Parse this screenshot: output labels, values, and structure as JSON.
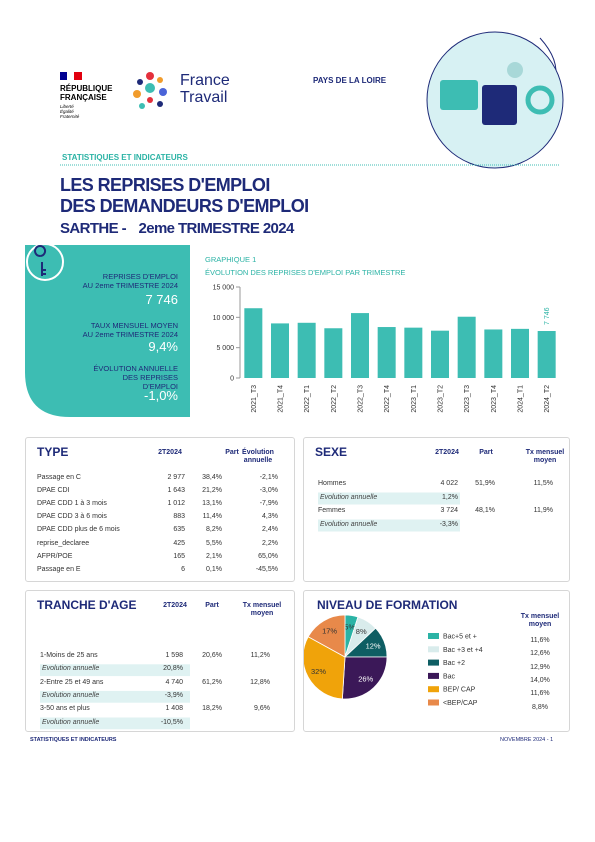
{
  "header": {
    "republique": [
      "RÉPUBLIQUE",
      "FRANÇAISE"
    ],
    "devise": [
      "Liberté",
      "Égalité",
      "Fraternité"
    ],
    "brand": [
      "France",
      "Travail"
    ],
    "region": "PAYS DE LA LOIRE",
    "section": "STATISTIQUES ET INDICATEURS"
  },
  "title": {
    "lines": [
      "LES REPRISES D'EMPLOI",
      "DES DEMANDEURS D'EMPLOI"
    ],
    "place": "SARTHE -",
    "period": "2eme TRIMESTRE 2024"
  },
  "kpi": [
    {
      "label": [
        "REPRISES D'EMPLOI",
        "AU 2eme TRIMESTRE 2024"
      ],
      "value": "7 746"
    },
    {
      "label": [
        "TAUX MENSUEL MOYEN",
        "AU 2eme TRIMESTRE 2024"
      ],
      "value": "9,4%"
    },
    {
      "label": [
        "ÉVOLUTION ANNUELLE",
        "DES REPRISES",
        "D'EMPLOI"
      ],
      "value": "-1,0%"
    }
  ],
  "chart_data": [
    {
      "type": "bar",
      "label": "GRAPHIQUE 1",
      "title": "ÉVOLUTION DES REPRISES D'EMPLOI PAR TRIMESTRE",
      "categories": [
        "2021_T3",
        "2021_T4",
        "2022_T1",
        "2022_T2",
        "2022_T3",
        "2022_T4",
        "2023_T1",
        "2023_T2",
        "2023_T3",
        "2023_T4",
        "2024_T1",
        "2024_T2"
      ],
      "values": [
        11500,
        9000,
        9100,
        8200,
        10700,
        8400,
        8300,
        7800,
        10100,
        8000,
        8100,
        7746
      ],
      "value_labels": [
        null,
        null,
        null,
        null,
        null,
        null,
        null,
        null,
        null,
        null,
        null,
        "7 746"
      ],
      "color": "#3dbdb3",
      "ylim": [
        0,
        15000
      ],
      "yticks": [
        0,
        {
          "value": 5000,
          "label": "5 000"
        },
        {
          "value": 10000,
          "label": "10 000"
        },
        {
          "value": 15000,
          "label": "15 000"
        }
      ],
      "grid": false
    },
    {
      "type": "pie",
      "title": "NIVEAU DE FORMATION",
      "categories": [
        "Bac+5 et +",
        "Bac +3 et +4",
        "Bac +2",
        "Bac",
        "BEP/ CAP",
        "<BEP/CAP"
      ],
      "values": [
        5,
        8,
        12,
        26,
        32,
        17
      ],
      "value_labels": [
        "5%",
        "8%",
        "12%",
        "26%",
        "32%",
        "17%"
      ],
      "colors": [
        "#2bb3a5",
        "#d9ecec",
        "#0e5e63",
        "#3b1858",
        "#f0a30a",
        "#e8894a"
      ],
      "rate_header": "Tx mensuel moyen",
      "rates": [
        "11,6%",
        "12,6%",
        "12,9%",
        "14,0%",
        "11,6%",
        "8,8%"
      ]
    }
  ],
  "tables": {
    "type": {
      "title": "TYPE",
      "headers": [
        "2T2024",
        "Part",
        "Évolution annuelle"
      ],
      "rows": [
        [
          "Passage en C",
          "2 977",
          "38,4%",
          "-2,1%"
        ],
        [
          "DPAE CDI",
          "1 643",
          "21,2%",
          "-3,0%"
        ],
        [
          "DPAE CDD 1 à 3 mois",
          "1 012",
          "13,1%",
          "-7,9%"
        ],
        [
          "DPAE CDD 3 à 6 mois",
          "883",
          "11,4%",
          "4,3%"
        ],
        [
          "DPAE CDD plus de 6 mois",
          "635",
          "8,2%",
          "2,4%"
        ],
        [
          "reprise_declaree",
          "425",
          "5,5%",
          "2,2%"
        ],
        [
          "AFPR/POE",
          "165",
          "2,1%",
          "65,0%"
        ],
        [
          "Passage en E",
          "6",
          "0,1%",
          "-45,5%"
        ]
      ]
    },
    "sexe": {
      "title": "SEXE",
      "headers": [
        "2T2024",
        "Part",
        "Tx mensuel moyen"
      ],
      "rows": [
        [
          "Hommes",
          "4 022",
          "51,9%",
          "11,5%"
        ],
        [
          "Evolution annuelle",
          "1,2%"
        ],
        [
          "Femmes",
          "3 724",
          "48,1%",
          "11,9%"
        ],
        [
          "Evolution annuelle",
          "-3,3%"
        ]
      ]
    },
    "tranche": {
      "title": "TRANCHE D'AGE",
      "headers": [
        "2T2024",
        "Part",
        "Tx mensuel moyen"
      ],
      "rows": [
        [
          "1-Moins de 25 ans",
          "1 598",
          "20,6%",
          "11,2%"
        ],
        [
          "Evolution annuelle",
          "20,8%"
        ],
        [
          "2-Entre 25 et 49 ans",
          "4 740",
          "61,2%",
          "12,8%"
        ],
        [
          "Evolution annuelle",
          "-3,9%"
        ],
        [
          "3-50 ans et plus",
          "1 408",
          "18,2%",
          "9,6%"
        ],
        [
          "Evolution annuelle",
          "-10,5%"
        ]
      ]
    }
  },
  "footer": {
    "left": "STATISTIQUES ET INDICATEURS",
    "right": "NOVEMBRE 2024 - 1"
  }
}
